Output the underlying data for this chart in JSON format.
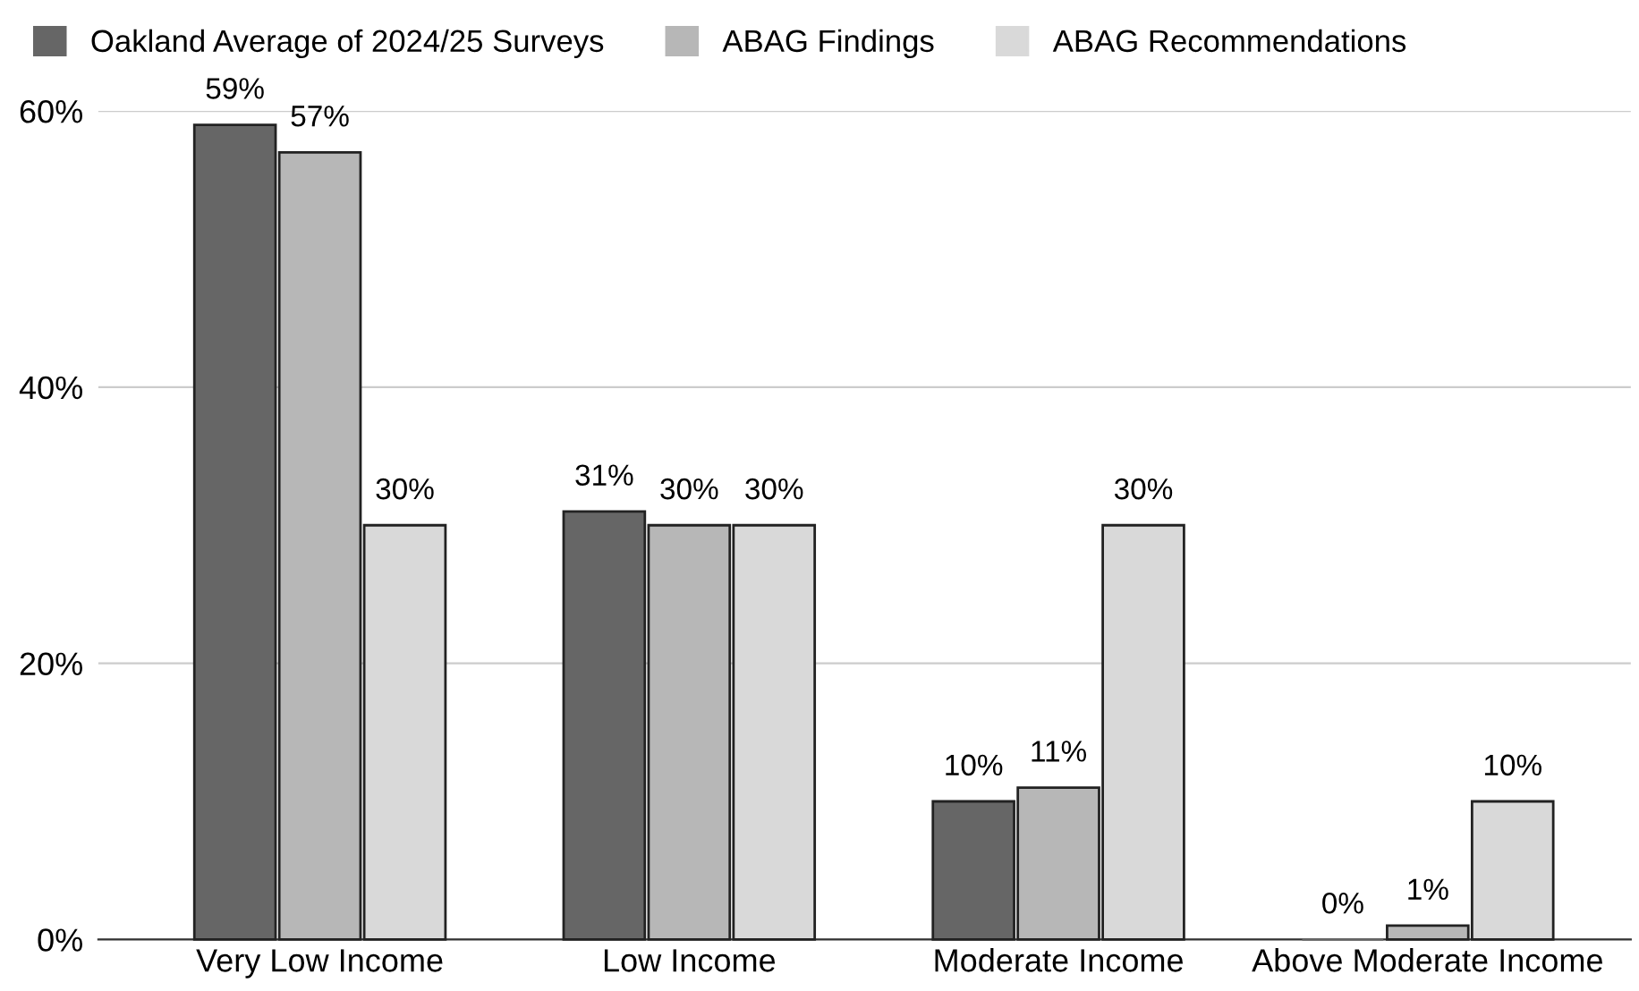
{
  "chart_data": {
    "type": "bar",
    "categories": [
      "Very Low Income",
      "Low Income",
      "Moderate Income",
      "Above Moderate Income"
    ],
    "series": [
      {
        "name": "Oakland Average of 2024/25 Surveys",
        "color": "#666666",
        "values": [
          59,
          31,
          10,
          0
        ],
        "value_labels": [
          "59%",
          "31%",
          "10%",
          "0%"
        ]
      },
      {
        "name": "ABAG Findings",
        "color": "#b7b7b7",
        "values": [
          57,
          30,
          11,
          1
        ],
        "value_labels": [
          "57%",
          "30%",
          "11%",
          "1%"
        ]
      },
      {
        "name": "ABAG Recommendations",
        "color": "#d9d9d9",
        "values": [
          30,
          30,
          30,
          10
        ],
        "value_labels": [
          "30%",
          "30%",
          "30%",
          "10%"
        ]
      }
    ],
    "ylim": [
      0,
      60
    ],
    "yticks": [
      {
        "value": 0,
        "label": "0%"
      },
      {
        "value": 20,
        "label": "20%"
      },
      {
        "value": 40,
        "label": "40%"
      },
      {
        "value": 60,
        "label": "60%"
      }
    ],
    "grid": "y",
    "legend": "top left"
  }
}
